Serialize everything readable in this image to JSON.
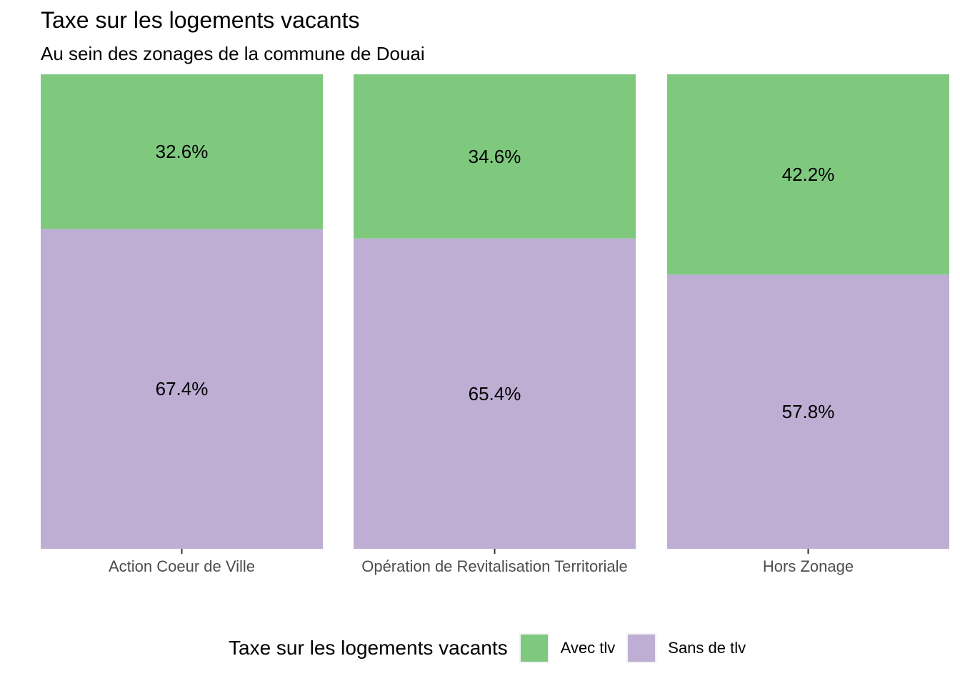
{
  "chart_data": {
    "type": "bar",
    "stacked": true,
    "percent_of_total": true,
    "title": "Taxe sur les logements vacants",
    "subtitle": "Au sein des zonages de la commune de Douai",
    "categories": [
      "Action Coeur de Ville",
      "Opération de Revitalisation Territoriale",
      "Hors Zonage"
    ],
    "series": [
      {
        "name": "Avec tlv",
        "values": [
          32.6,
          34.6,
          42.2
        ],
        "labels": [
          "32.6%",
          "34.6%",
          "42.2%"
        ],
        "color": "#7fc97f"
      },
      {
        "name": "Sans de tlv",
        "values": [
          67.4,
          65.4,
          57.8
        ],
        "labels": [
          "67.4%",
          "65.4%",
          "57.8%"
        ],
        "color": "#beaed4"
      }
    ],
    "ylim": [
      0,
      100
    ],
    "grid": false,
    "legend": {
      "title": "Taxe sur les logements vacants",
      "position": "bottom"
    }
  }
}
